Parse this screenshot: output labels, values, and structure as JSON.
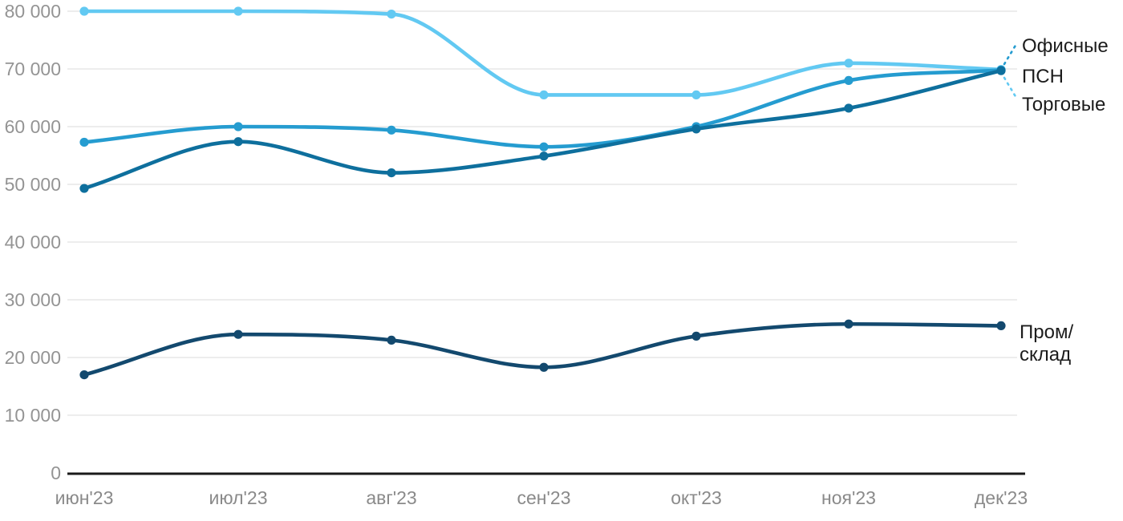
{
  "chart_data": {
    "type": "line",
    "categories": [
      "июн'23",
      "июл'23",
      "авг'23",
      "сен'23",
      "окт'23",
      "ноя'23",
      "дек'23"
    ],
    "y_ticks": [
      "80 000",
      "70 000",
      "60 000",
      "50 000",
      "40 000",
      "30 000",
      "20 000",
      "10 000",
      "0"
    ],
    "y_tick_values": [
      80000,
      70000,
      60000,
      50000,
      40000,
      30000,
      20000,
      10000,
      0
    ],
    "ylim": [
      0,
      80000
    ],
    "grid": "horizontal",
    "legend_position": "right-edge-direct-labels",
    "series": [
      {
        "name": "Торговые",
        "color": "#62c9f2",
        "values": [
          80000,
          80000,
          79500,
          65500,
          65500,
          71000,
          69900
        ]
      },
      {
        "name": "Офисные",
        "color": "#259cd0",
        "values": [
          57300,
          60000,
          59400,
          56500,
          60000,
          68000,
          69800
        ]
      },
      {
        "name": "ПСН",
        "color": "#0e6f9d",
        "values": [
          49300,
          57400,
          52000,
          54900,
          59600,
          63200,
          69700
        ]
      },
      {
        "name": "Пром/склад",
        "color": "#13496e",
        "values": [
          17000,
          24000,
          23000,
          18300,
          23700,
          25800,
          25500
        ]
      }
    ]
  },
  "labels": {
    "prom_line1": "Пром/",
    "prom_line2": "склад"
  },
  "colors": {
    "grid": "#e7e7e7",
    "axis": "#1a1a1a",
    "y_tick_text": "#949494",
    "x_tick_text": "#8a8a8a",
    "label_text": "#1c1c1c"
  }
}
